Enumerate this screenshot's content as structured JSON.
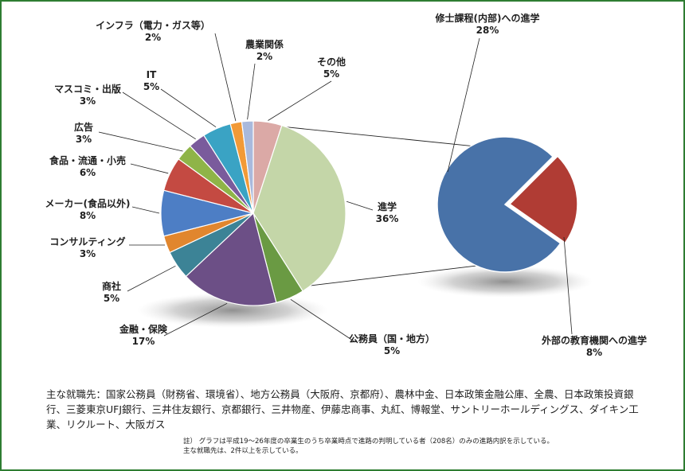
{
  "chart_data": {
    "type": "pie",
    "subtype": "pie-of-pie",
    "main": [
      {
        "label": "その他",
        "pct": "5%",
        "value": 5,
        "color": "#dba9a6",
        "label_lines": [
          "その他",
          "5%"
        ]
      },
      {
        "label": "進学",
        "pct": "36%",
        "value": 36,
        "color": "#c4d6a8",
        "label_lines": [
          "進学",
          "36%"
        ]
      },
      {
        "label": "公務員（国・地方）",
        "pct": "5%",
        "value": 5,
        "color": "#6a9a43",
        "label_lines": [
          "公務員（国・地方）",
          "5%"
        ]
      },
      {
        "label": "金融・保険",
        "pct": "17%",
        "value": 17,
        "color": "#6c4f86",
        "label_lines": [
          "金融・保険",
          "17%"
        ]
      },
      {
        "label": "商社",
        "pct": "5%",
        "value": 5,
        "color": "#3c8396",
        "label_lines": [
          "商社",
          "5%"
        ]
      },
      {
        "label": "コンサルティング",
        "pct": "3%",
        "value": 3,
        "color": "#e1862e",
        "label_lines": [
          "コンサルティング",
          "3%"
        ]
      },
      {
        "label": "メーカー(食品以外)",
        "pct": "8%",
        "value": 8,
        "color": "#4d7ec5",
        "label_lines": [
          "メーカー(食品以外)",
          "8%"
        ]
      },
      {
        "label": "食品・流通・小売",
        "pct": "6%",
        "value": 6,
        "color": "#c44a42",
        "label_lines": [
          "食品・流通・小売",
          "6%"
        ]
      },
      {
        "label": "広告",
        "pct": "3%",
        "value": 3,
        "color": "#8fb448",
        "label_lines": [
          "広告",
          "3%"
        ]
      },
      {
        "label": "マスコミ・出版",
        "pct": "3%",
        "value": 3,
        "color": "#7a5b9c",
        "label_lines": [
          "マスコミ・出版",
          "3%"
        ]
      },
      {
        "label": "IT",
        "pct": "5%",
        "value": 5,
        "color": "#3aa3c4",
        "label_lines": [
          "IT",
          "5%"
        ]
      },
      {
        "label": "インフラ（電力・ガス等）",
        "pct": "2%",
        "value": 2,
        "color": "#f29a37",
        "label_lines": [
          "インフラ（電力・ガス等）",
          "2%"
        ]
      },
      {
        "label": "農業関係",
        "pct": "2%",
        "value": 2,
        "color": "#a9b9dc",
        "label_lines": [
          "農業関係",
          "2%"
        ]
      }
    ],
    "secondary": [
      {
        "label": "修士課程(内部)への進学",
        "pct": "28%",
        "value": 28,
        "color": "#4872a8",
        "label_lines": [
          "修士課程(内部)への進学",
          "28%"
        ]
      },
      {
        "label": "外部の教育機関への進学",
        "pct": "8%",
        "value": 8,
        "color": "#b03c34",
        "label_lines": [
          "外部の教育機関への進学",
          "8%"
        ]
      }
    ]
  },
  "footer": {
    "employers": "主な就職先：国家公務員（財務省、環境省）、地方公務員（大阪府、京都府）、農林中金、日本政策金融公庫、全農、日本政策投資銀行、三菱東京UFJ銀行、三井住友銀行、京都銀行、三井物産、伊藤忠商事、丸紅、博報堂、サントリーホールディングス、ダイキン工業、リクルート、大阪ガス",
    "note": "註） グラフは平成19～26年度の卒業生のうち卒業時点で進路の判明している者（208名）のみの進路内訳を示している。主な就職先は、2件以上を示している。"
  }
}
